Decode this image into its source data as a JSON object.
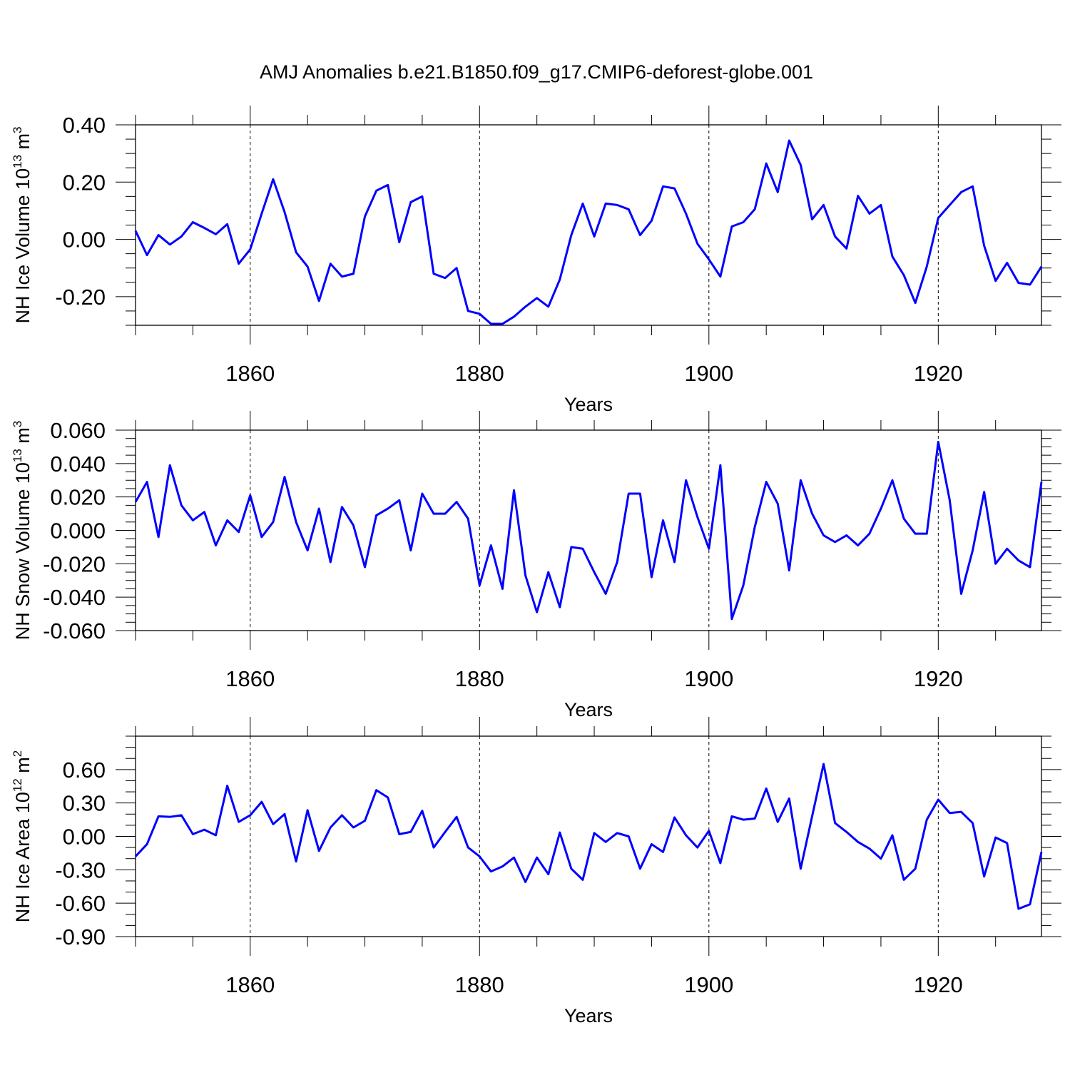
{
  "title": "AMJ Anomalies b.e21.B1850.f09_g17.CMIP6-deforest-globe.001",
  "colors": {
    "line": "#0000ff",
    "axis": "#000000",
    "grid": "#000000"
  },
  "chart_data": [
    {
      "type": "line",
      "ylabel": {
        "main": "NH Ice Volume 10",
        "exp": "13",
        "unit": " m",
        "unit_exp": "3"
      },
      "xlabel": "Years",
      "xlim": [
        1850,
        1929
      ],
      "ylim": [
        -0.3,
        0.4
      ],
      "yticks": [
        -0.2,
        0.0,
        0.2,
        0.4
      ],
      "ytick_labels": [
        "-0.20",
        "0.00",
        "0.20",
        "0.40"
      ],
      "yminor": 0.05,
      "xticks": [
        1860,
        1880,
        1900,
        1920
      ],
      "xtick_labels": [
        "1860",
        "1880",
        "1900",
        "1920"
      ],
      "xminor": 5,
      "x_start": 1850,
      "series": [
        {
          "name": "NH Ice Volume",
          "values": [
            0.03,
            -0.055,
            0.015,
            -0.018,
            0.01,
            0.06,
            0.04,
            0.018,
            0.053,
            -0.085,
            -0.035,
            0.09,
            0.21,
            0.095,
            -0.045,
            -0.095,
            -0.215,
            -0.085,
            -0.13,
            -0.12,
            0.08,
            0.17,
            0.19,
            -0.01,
            0.13,
            0.15,
            -0.12,
            -0.135,
            -0.1,
            -0.25,
            -0.26,
            -0.295,
            -0.295,
            -0.27,
            -0.235,
            -0.205,
            -0.235,
            -0.14,
            0.015,
            0.125,
            0.01,
            0.125,
            0.12,
            0.105,
            0.015,
            0.065,
            0.185,
            0.178,
            0.09,
            -0.015,
            -0.07,
            -0.13,
            0.045,
            0.06,
            0.105,
            0.265,
            0.165,
            0.345,
            0.26,
            0.07,
            0.12,
            0.01,
            -0.032,
            0.152,
            0.09,
            0.12,
            -0.06,
            -0.125,
            -0.222,
            -0.095,
            0.075,
            0.12,
            0.165,
            0.185,
            -0.022,
            -0.145,
            -0.082,
            -0.152,
            -0.158,
            -0.095
          ]
        }
      ]
    },
    {
      "type": "line",
      "ylabel": {
        "main": "NH Snow Volume 10",
        "exp": "13",
        "unit": " m",
        "unit_exp": "3"
      },
      "xlabel": "Years",
      "xlim": [
        1850,
        1929
      ],
      "ylim": [
        -0.06,
        0.06
      ],
      "yticks": [
        -0.06,
        -0.04,
        -0.02,
        0.0,
        0.02,
        0.04,
        0.06
      ],
      "ytick_labels": [
        "-0.060",
        "-0.040",
        "-0.020",
        "0.000",
        "0.020",
        "0.040",
        "0.060"
      ],
      "yminor": 0.005,
      "xticks": [
        1860,
        1880,
        1900,
        1920
      ],
      "xtick_labels": [
        "1860",
        "1880",
        "1900",
        "1920"
      ],
      "xminor": 5,
      "x_start": 1850,
      "series": [
        {
          "name": "NH Snow Volume",
          "values": [
            0.017,
            0.029,
            -0.004,
            0.039,
            0.015,
            0.006,
            0.011,
            -0.009,
            0.006,
            -0.001,
            0.021,
            -0.004,
            0.005,
            0.032,
            0.005,
            -0.012,
            0.013,
            -0.019,
            0.014,
            0.003,
            -0.022,
            0.009,
            0.013,
            0.018,
            -0.012,
            0.022,
            0.01,
            0.01,
            0.017,
            0.007,
            -0.033,
            -0.009,
            -0.035,
            0.024,
            -0.027,
            -0.049,
            -0.025,
            -0.046,
            -0.01,
            -0.011,
            -0.025,
            -0.038,
            -0.019,
            0.022,
            0.022,
            -0.028,
            0.006,
            -0.019,
            0.03,
            0.008,
            -0.011,
            0.039,
            -0.053,
            -0.033,
            0.002,
            0.029,
            0.016,
            -0.024,
            0.03,
            0.01,
            -0.003,
            -0.007,
            -0.003,
            -0.009,
            -0.002,
            0.013,
            0.03,
            0.007,
            -0.002,
            -0.002,
            0.053,
            0.018,
            -0.038,
            -0.012,
            0.023,
            -0.02,
            -0.011,
            -0.018,
            -0.022,
            0.029
          ]
        }
      ]
    },
    {
      "type": "line",
      "ylabel": {
        "main": "NH Ice Area 10",
        "exp": "12",
        "unit": " m",
        "unit_exp": "2"
      },
      "xlabel": "Years",
      "xlim": [
        1850,
        1929
      ],
      "ylim": [
        -0.9,
        0.9
      ],
      "yticks": [
        -0.9,
        -0.6,
        -0.3,
        0.0,
        0.3,
        0.6
      ],
      "ytick_labels": [
        "-0.90",
        "-0.60",
        "-0.30",
        "0.00",
        "0.30",
        "0.60"
      ],
      "yminor": 0.1,
      "xticks": [
        1860,
        1880,
        1900,
        1920
      ],
      "xtick_labels": [
        "1860",
        "1880",
        "1900",
        "1920"
      ],
      "xminor": 5,
      "x_start": 1850,
      "series": [
        {
          "name": "NH Ice Area",
          "values": [
            -0.18,
            -0.07,
            0.18,
            0.175,
            0.19,
            0.02,
            0.06,
            0.01,
            0.455,
            0.13,
            0.19,
            0.31,
            0.11,
            0.2,
            -0.225,
            0.235,
            -0.13,
            0.08,
            0.19,
            0.08,
            0.14,
            0.415,
            0.35,
            0.02,
            0.04,
            0.23,
            -0.1,
            0.04,
            0.175,
            -0.1,
            -0.18,
            -0.315,
            -0.27,
            -0.19,
            -0.41,
            -0.19,
            -0.34,
            0.035,
            -0.29,
            -0.39,
            0.03,
            -0.05,
            0.03,
            0.0,
            -0.29,
            -0.07,
            -0.14,
            0.17,
            0.01,
            -0.1,
            0.05,
            -0.24,
            0.18,
            0.15,
            0.16,
            0.43,
            0.13,
            0.34,
            -0.29,
            0.18,
            0.65,
            0.12,
            0.04,
            -0.05,
            -0.11,
            -0.2,
            0.01,
            -0.39,
            -0.29,
            0.15,
            0.33,
            0.21,
            0.22,
            0.12,
            -0.36,
            -0.01,
            -0.06,
            -0.65,
            -0.61,
            -0.14
          ]
        }
      ]
    }
  ]
}
